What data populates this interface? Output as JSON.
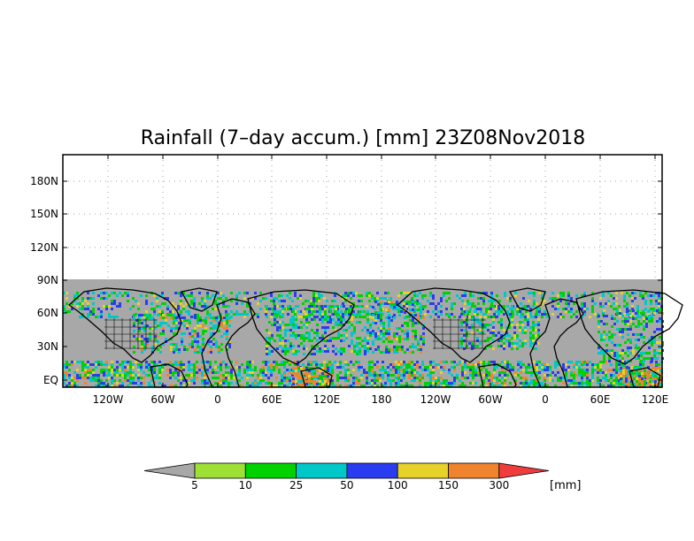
{
  "title": "Rainfall (7–day accum.) [mm] 23Z08Nov2018",
  "y_ticks": [
    "EQ",
    "30N",
    "60N",
    "90N",
    "120N",
    "150N",
    "180N"
  ],
  "x_ticks": [
    "120W",
    "60W",
    "0",
    "60E",
    "120E",
    "180",
    "120W",
    "60W",
    "0",
    "60E",
    "120E"
  ],
  "colorbar": {
    "thresholds": [
      "5",
      "10",
      "25",
      "50",
      "100",
      "150",
      "300"
    ],
    "unit": "[mm]",
    "colors": [
      "#a8a8a8",
      "#9ee035",
      "#00d200",
      "#00c8c8",
      "#2a3cf0",
      "#e6d228",
      "#f0842d",
      "#f03c3c"
    ]
  },
  "colors": {
    "no_data_gray": "#a8a8a8",
    "frame": "#000000",
    "grid": "#a0a0a0",
    "coast": "#000000"
  }
}
